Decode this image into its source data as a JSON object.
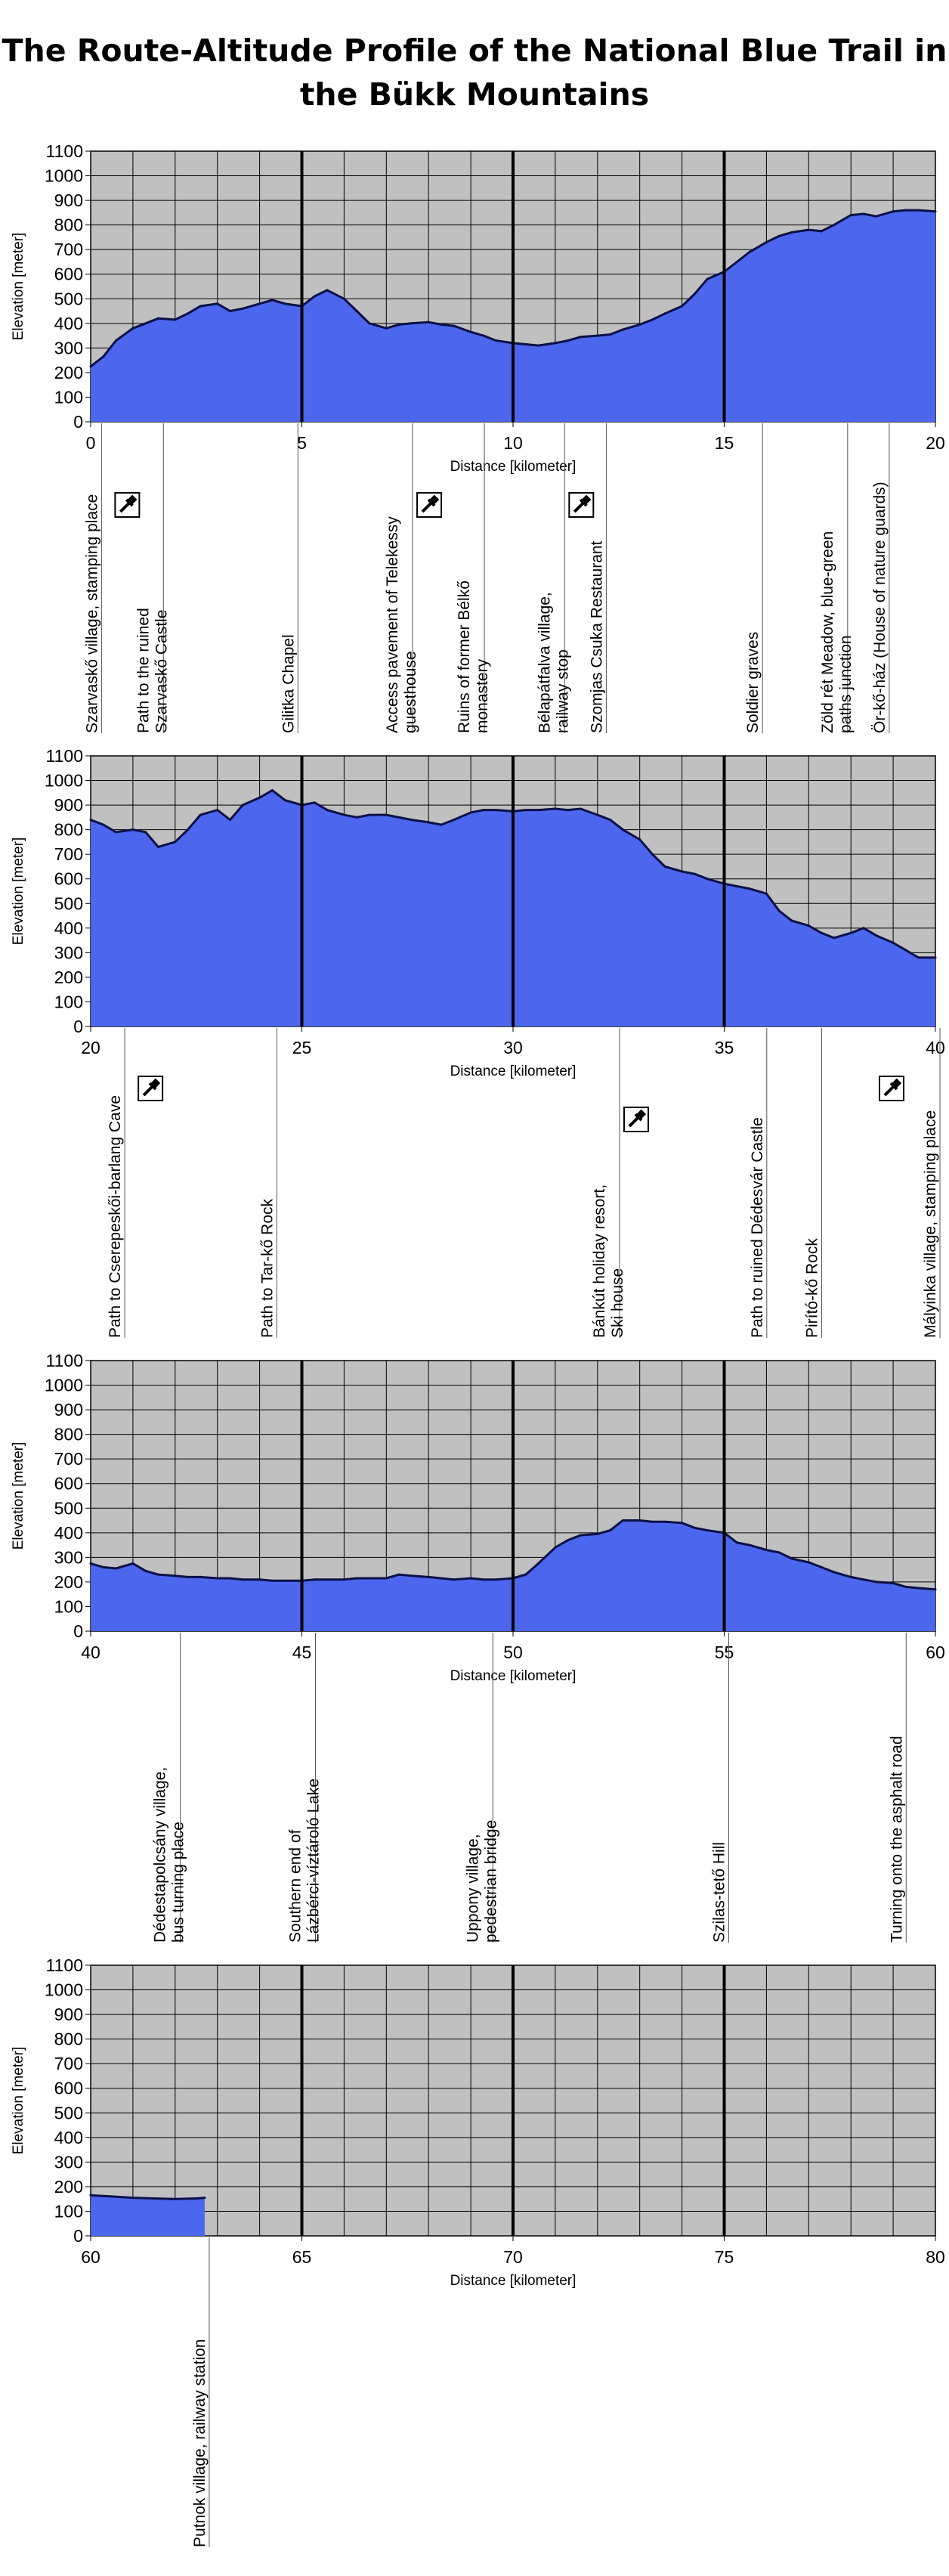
{
  "title_lines": [
    "The Route-Altitude Profile of the National Blue Trail in",
    "the Bükk Mountains"
  ],
  "colors": {
    "fill": "#4d66ee",
    "line": "#0a1147",
    "plot_bg": "#c0c0c0",
    "grid": "#000000"
  },
  "chart_data": [
    {
      "type": "area",
      "xlabel": "Distance [kilometer]",
      "ylabel": "Elevation [meter]",
      "xlim": [
        0,
        20
      ],
      "ylim": [
        0,
        1100
      ],
      "xticks": [
        0,
        5,
        10,
        15,
        20
      ],
      "yticks": [
        0,
        100,
        200,
        300,
        400,
        500,
        600,
        700,
        800,
        900,
        1000,
        1100
      ],
      "x": [
        0,
        0.3,
        0.6,
        1,
        1.3,
        1.6,
        2,
        2.3,
        2.6,
        3,
        3.3,
        3.6,
        4,
        4.3,
        4.6,
        5,
        5.3,
        5.6,
        6,
        6.3,
        6.6,
        7,
        7.3,
        7.6,
        8,
        8.3,
        8.6,
        9,
        9.3,
        9.6,
        10,
        10.3,
        10.6,
        11,
        11.3,
        11.6,
        12,
        12.3,
        12.6,
        13,
        13.3,
        13.6,
        14,
        14.3,
        14.6,
        15,
        15.3,
        15.6,
        16,
        16.3,
        16.6,
        17,
        17.3,
        17.6,
        18,
        18.3,
        18.6,
        19,
        19.3,
        19.6,
        20
      ],
      "y": [
        225,
        265,
        330,
        380,
        400,
        420,
        415,
        440,
        470,
        480,
        450,
        460,
        480,
        495,
        480,
        470,
        510,
        535,
        500,
        450,
        400,
        380,
        395,
        400,
        405,
        395,
        390,
        365,
        350,
        330,
        320,
        315,
        310,
        320,
        330,
        345,
        350,
        355,
        375,
        395,
        415,
        440,
        470,
        520,
        580,
        610,
        650,
        690,
        730,
        755,
        770,
        780,
        775,
        800,
        840,
        845,
        835,
        855,
        860,
        860,
        855
      ],
      "annotations": [
        {
          "x": 0.15,
          "lines": [
            "Szarvaskő village, stamping place"
          ],
          "stamp": true
        },
        {
          "x": 1.4,
          "lines": [
            "Path to the ruined",
            "Szarvaskő Castle"
          ]
        },
        {
          "x": 4.8,
          "lines": [
            "Gilitka Chapel"
          ]
        },
        {
          "x": 7.3,
          "lines": [
            "Access pavement of Telekessy",
            "guesthouse"
          ],
          "stamp": true
        },
        {
          "x": 9.0,
          "lines": [
            "Ruins of former Bélkő",
            "monastery"
          ]
        },
        {
          "x": 10.9,
          "lines": [
            "Bélapátfalva village,",
            "railway stop"
          ],
          "stamp": true
        },
        {
          "x": 12.1,
          "lines": [
            "Szomjas Csuka Restaurant"
          ]
        },
        {
          "x": 15.8,
          "lines": [
            "Soldier graves"
          ]
        },
        {
          "x": 17.6,
          "lines": [
            "Zöld rét Meadow, blue-green",
            "paths junction"
          ]
        },
        {
          "x": 18.8,
          "lines": [
            "Ör-kő-ház (House of nature guards)"
          ]
        }
      ]
    },
    {
      "type": "area",
      "xlabel": "Distance [kilometer]",
      "ylabel": "Elevation [meter]",
      "xlim": [
        20,
        40
      ],
      "ylim": [
        0,
        1100
      ],
      "xticks": [
        20,
        25,
        30,
        35,
        40
      ],
      "yticks": [
        0,
        100,
        200,
        300,
        400,
        500,
        600,
        700,
        800,
        900,
        1000,
        1100
      ],
      "x": [
        20,
        20.3,
        20.6,
        21,
        21.3,
        21.6,
        22,
        22.3,
        22.6,
        23,
        23.3,
        23.6,
        24,
        24.3,
        24.6,
        25,
        25.3,
        25.6,
        26,
        26.3,
        26.6,
        27,
        27.3,
        27.6,
        28,
        28.3,
        28.6,
        29,
        29.3,
        29.6,
        30,
        30.3,
        30.6,
        31,
        31.3,
        31.6,
        32,
        32.3,
        32.6,
        33,
        33.3,
        33.6,
        34,
        34.3,
        34.6,
        35,
        35.3,
        35.6,
        36,
        36.3,
        36.6,
        37,
        37.3,
        37.6,
        38,
        38.3,
        38.6,
        39,
        39.3,
        39.6,
        40
      ],
      "y": [
        840,
        820,
        790,
        800,
        790,
        730,
        750,
        800,
        860,
        880,
        840,
        900,
        930,
        960,
        920,
        900,
        910,
        880,
        860,
        850,
        860,
        860,
        850,
        840,
        830,
        820,
        840,
        870,
        880,
        880,
        875,
        880,
        880,
        885,
        880,
        885,
        860,
        840,
        800,
        760,
        700,
        650,
        630,
        620,
        600,
        580,
        570,
        560,
        540,
        470,
        430,
        410,
        380,
        360,
        380,
        400,
        370,
        340,
        310,
        280,
        280
      ],
      "annotations": [
        {
          "x": 20.7,
          "lines": [
            "Path to Cserepeskői-barlang Cave"
          ],
          "stamp": true
        },
        {
          "x": 24.3,
          "lines": [
            "Path to Tar-kő Rock"
          ]
        },
        {
          "x": 32.2,
          "lines": [
            "Bánkút holiday resort,",
            "Ski house"
          ],
          "stamp": true
        },
        {
          "x": 35.9,
          "lines": [
            "Path to ruined Dédesvár Castle"
          ]
        },
        {
          "x": 37.2,
          "lines": [
            "Pirító-kő Rock"
          ]
        },
        {
          "x": 40.0,
          "lines": [
            "Mályinka village, stamping place"
          ],
          "stamp": true
        }
      ]
    },
    {
      "type": "area",
      "xlabel": "Distance [kilometer]",
      "ylabel": "Elevation [meter]",
      "xlim": [
        40,
        60
      ],
      "ylim": [
        0,
        1100
      ],
      "xticks": [
        40,
        45,
        50,
        55,
        60
      ],
      "yticks": [
        0,
        100,
        200,
        300,
        400,
        500,
        600,
        700,
        800,
        900,
        1000,
        1100
      ],
      "x": [
        40,
        40.3,
        40.6,
        41,
        41.3,
        41.6,
        42,
        42.3,
        42.6,
        43,
        43.3,
        43.6,
        44,
        44.3,
        44.6,
        45,
        45.3,
        45.6,
        46,
        46.3,
        46.6,
        47,
        47.3,
        47.6,
        48,
        48.3,
        48.6,
        49,
        49.3,
        49.6,
        50,
        50.3,
        50.6,
        51,
        51.3,
        51.6,
        52,
        52.3,
        52.6,
        53,
        53.3,
        53.6,
        54,
        54.3,
        54.6,
        55,
        55.3,
        55.6,
        56,
        56.3,
        56.6,
        57,
        57.3,
        57.6,
        58,
        58.3,
        58.6,
        59,
        59.3,
        59.6,
        60
      ],
      "y": [
        275,
        260,
        255,
        275,
        245,
        230,
        225,
        220,
        220,
        215,
        215,
        210,
        210,
        205,
        205,
        205,
        210,
        210,
        210,
        215,
        215,
        215,
        230,
        225,
        220,
        215,
        210,
        215,
        210,
        210,
        215,
        230,
        275,
        340,
        370,
        390,
        395,
        410,
        450,
        450,
        445,
        445,
        440,
        420,
        410,
        400,
        360,
        350,
        330,
        320,
        295,
        280,
        260,
        240,
        220,
        210,
        200,
        195,
        180,
        175,
        170
      ],
      "annotations": [
        {
          "x": 41.8,
          "lines": [
            "Dédestapolcsány village,",
            "bus turning place"
          ]
        },
        {
          "x": 45.0,
          "lines": [
            "Southern end of",
            "Lázbérci-víztároló Lake"
          ]
        },
        {
          "x": 49.2,
          "lines": [
            "Uppony village,",
            "pedestrian bridge"
          ]
        },
        {
          "x": 55.0,
          "lines": [
            "Szilas-tető Hill"
          ]
        },
        {
          "x": 59.2,
          "lines": [
            "Turning onto the asphalt road"
          ]
        }
      ]
    },
    {
      "type": "area",
      "xlabel": "Distance [kilometer]",
      "ylabel": "Elevation [meter]",
      "xlim": [
        60,
        80
      ],
      "ylim": [
        0,
        1100
      ],
      "xticks": [
        60,
        65,
        70,
        75,
        80
      ],
      "yticks": [
        0,
        100,
        200,
        300,
        400,
        500,
        600,
        700,
        800,
        900,
        1000,
        1100
      ],
      "x": [
        60,
        60.5,
        61,
        61.5,
        62,
        62.5,
        62.7
      ],
      "y": [
        165,
        160,
        155,
        152,
        150,
        152,
        155
      ],
      "annotations": [
        {
          "x": 62.7,
          "lines": [
            "Putnok village, railway station"
          ]
        }
      ]
    }
  ]
}
